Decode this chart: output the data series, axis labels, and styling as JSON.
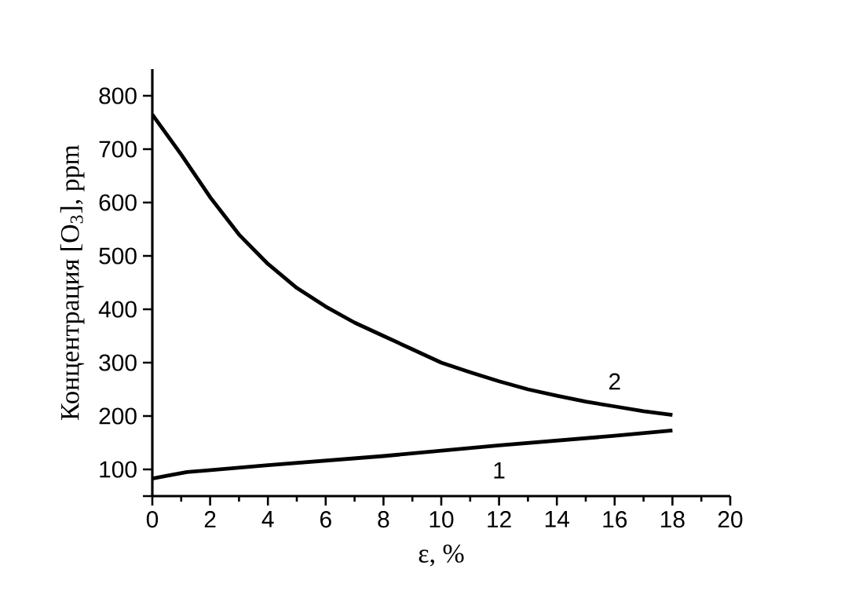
{
  "chart_data": {
    "type": "line",
    "xlabel": "ε, %",
    "ylabel": "Концентрация [O$_{3}$], ppm",
    "xlim": [
      0,
      20
    ],
    "ylim": [
      50,
      850
    ],
    "xticks": [
      0,
      2,
      4,
      6,
      8,
      10,
      12,
      14,
      16,
      18,
      20
    ],
    "yticks": [
      {
        "value": 50,
        "label": null
      },
      100,
      200,
      300,
      400,
      500,
      600,
      700,
      800
    ],
    "grid": false,
    "marker": "none",
    "line_style": "solid",
    "series": [
      {
        "color": "#000000",
        "x": [
          0,
          0.5,
          1.2,
          4,
          8,
          12,
          16,
          18
        ],
        "values": [
          83,
          88,
          95,
          108,
          125,
          145,
          163,
          173
        ]
      },
      {
        "color": "#000000",
        "x": [
          0,
          1,
          2,
          3,
          4,
          5,
          6,
          7,
          8,
          9,
          10,
          11,
          12,
          13,
          14,
          15,
          16,
          17,
          18
        ],
        "values": [
          765,
          690,
          610,
          540,
          485,
          440,
          405,
          375,
          350,
          325,
          300,
          282,
          265,
          250,
          238,
          227,
          218,
          209,
          202
        ]
      }
    ],
    "annotations": [
      "1",
      "2"
    ]
  }
}
